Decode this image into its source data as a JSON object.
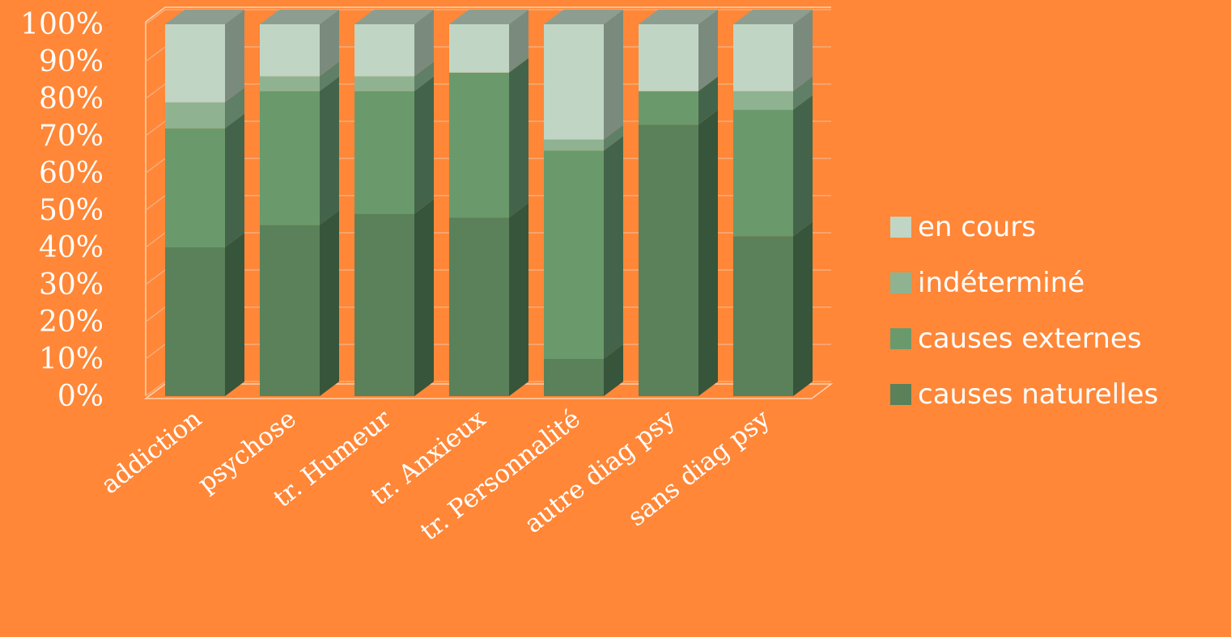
{
  "chart_data": {
    "type": "bar",
    "stacked": true,
    "percent": true,
    "three_d": true,
    "categories": [
      "addiction",
      "psychose",
      "tr. Humeur",
      "tr. Anxieux",
      "tr. Personnalité",
      "autre diag psy",
      "sans diag psy"
    ],
    "series": [
      {
        "name": "causes naturelles",
        "color": "#5A8159",
        "side": "#36553A",
        "values": [
          40,
          46,
          49,
          48,
          10,
          73,
          43
        ]
      },
      {
        "name": "causes externes",
        "color": "#6A9A6C",
        "side": "#43644A",
        "values": [
          32,
          36,
          33,
          39,
          56,
          9,
          34
        ]
      },
      {
        "name": "indéterminé",
        "color": "#8FB390",
        "side": "#5F7F66",
        "values": [
          7,
          4,
          4,
          0,
          3,
          0,
          5
        ]
      },
      {
        "name": "en cours",
        "color": "#C0D5C4",
        "side": "#7A8B7D",
        "values": [
          21,
          14,
          14,
          13,
          31,
          18,
          18
        ]
      }
    ],
    "y_ticks": [
      "0%",
      "10%",
      "20%",
      "30%",
      "40%",
      "50%",
      "60%",
      "70%",
      "80%",
      "90%",
      "100%"
    ],
    "ylim": [
      0,
      100
    ],
    "grid": true,
    "legend_position": "right"
  }
}
